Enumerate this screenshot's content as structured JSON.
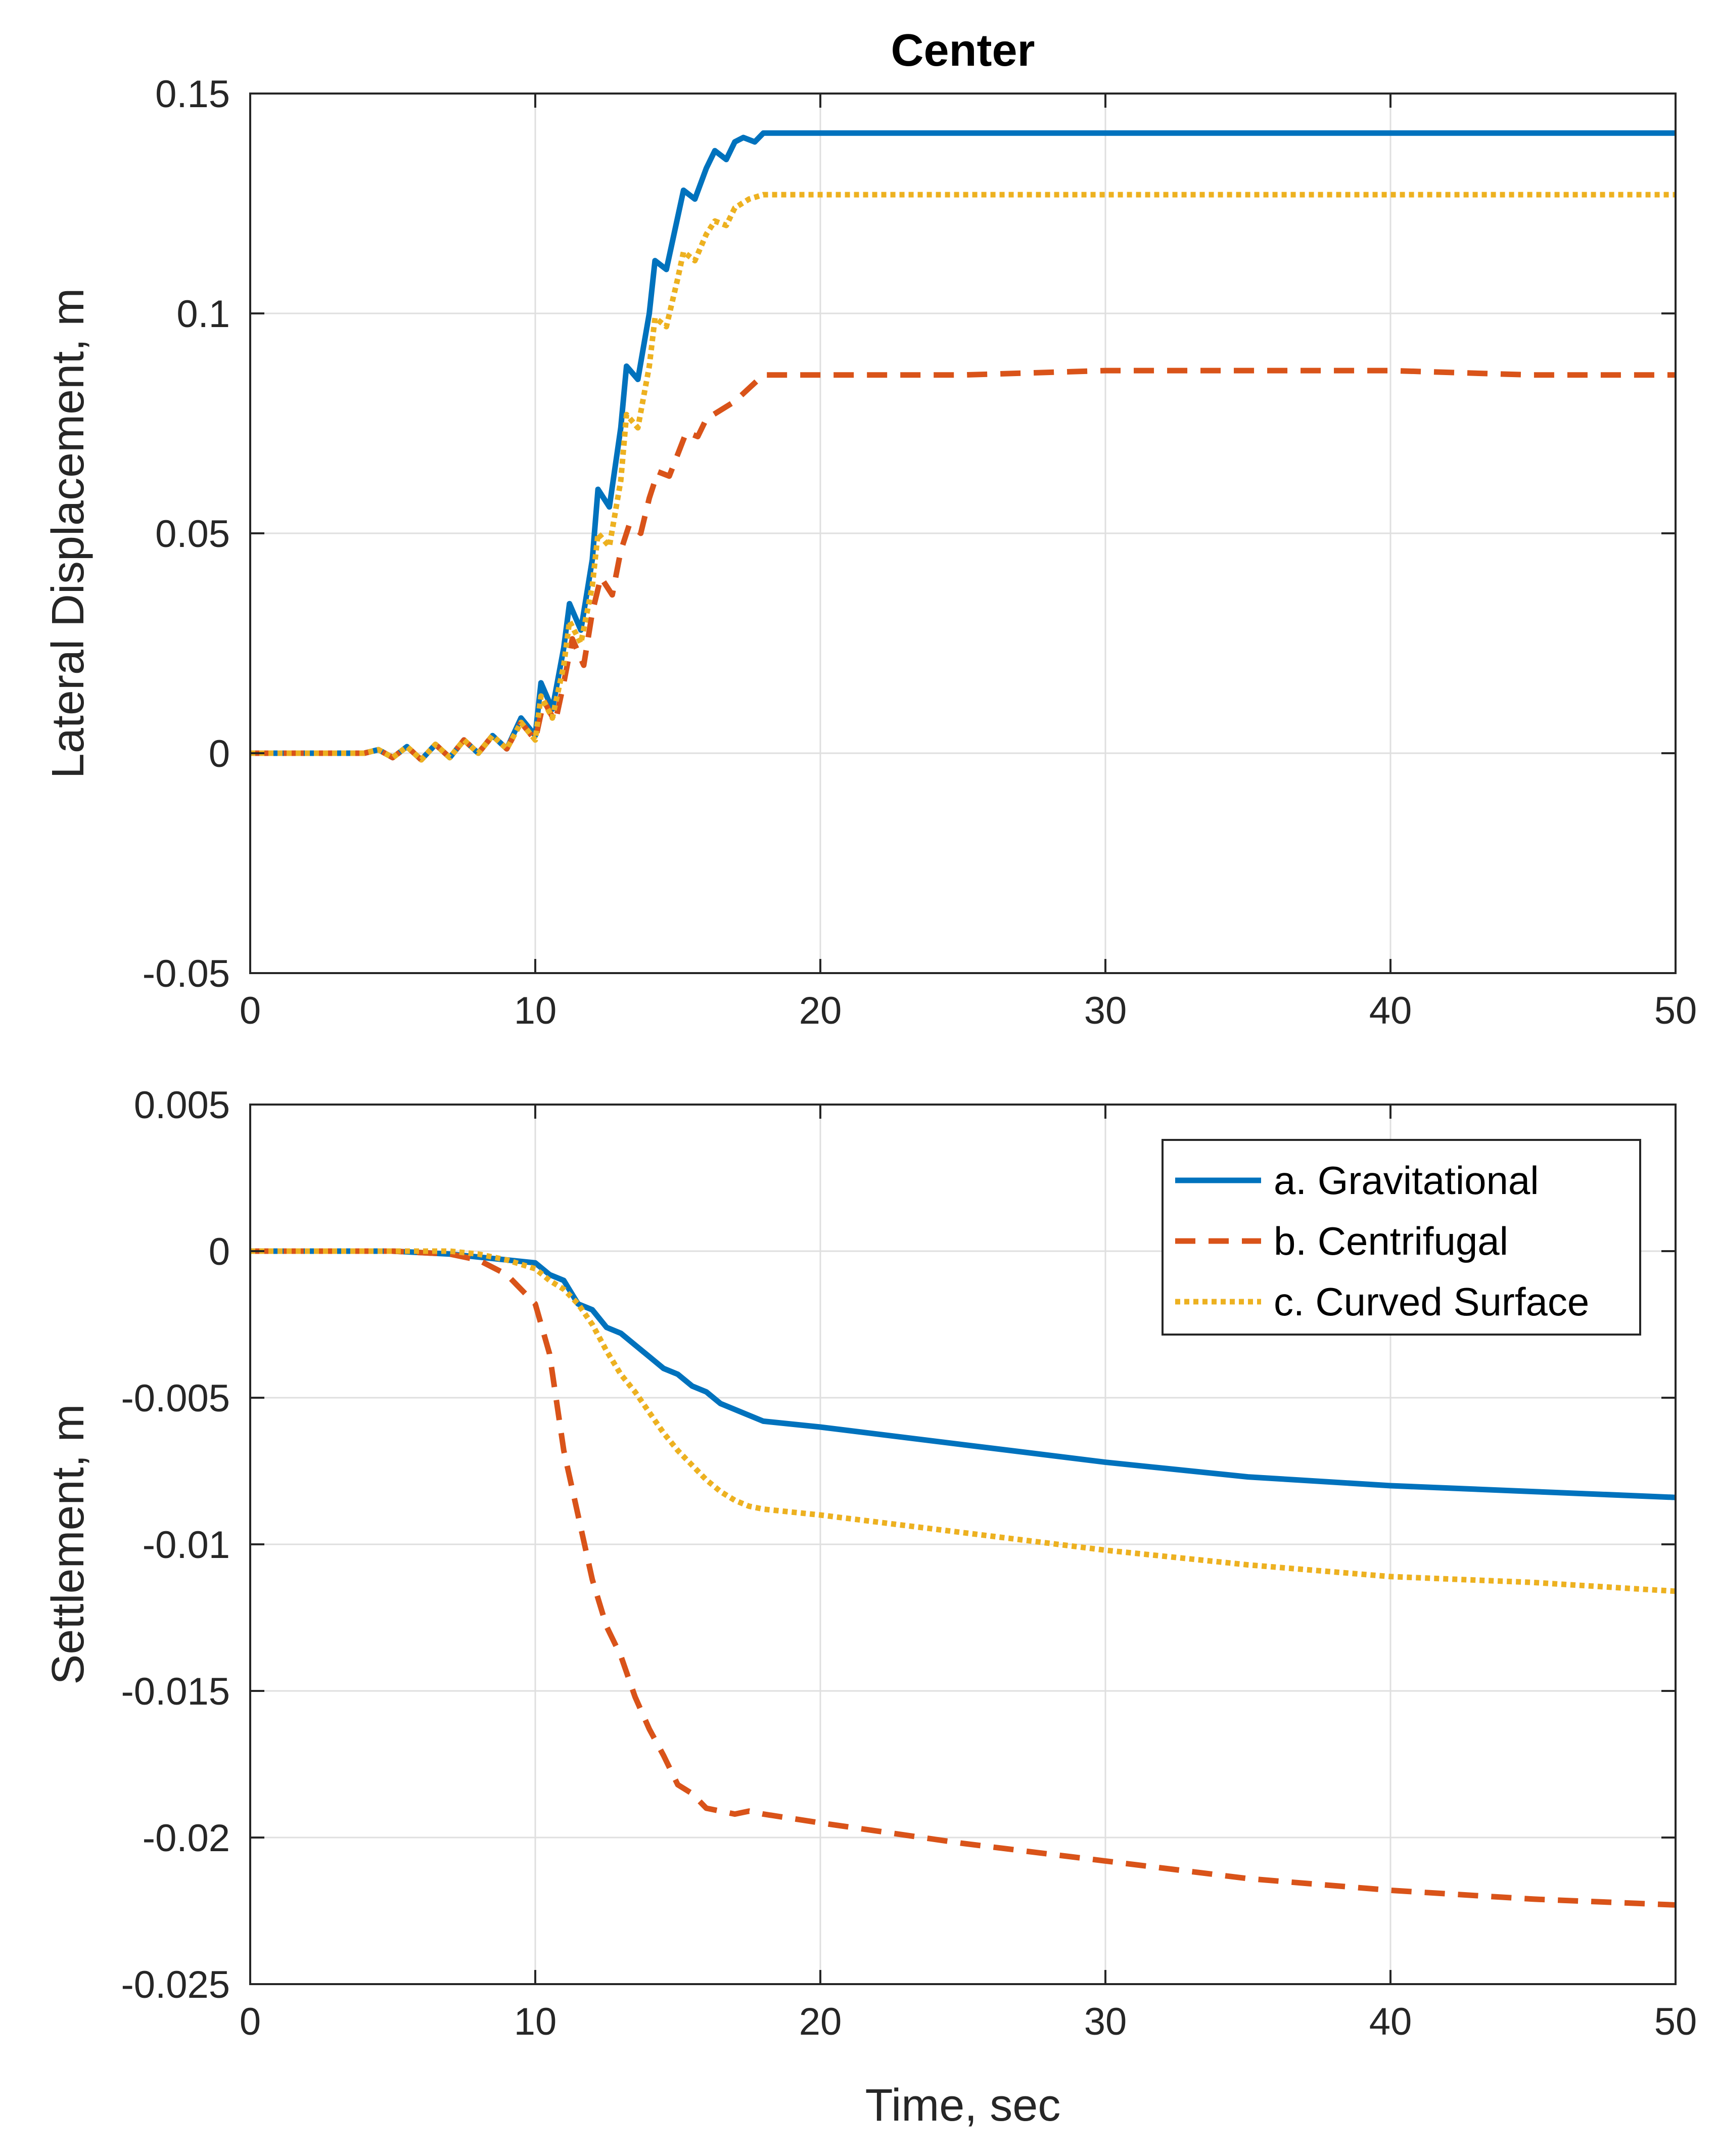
{
  "chart_data": [
    {
      "type": "line",
      "title": "Center",
      "xlabel": "",
      "ylabel": "Lateral Displacement, m",
      "xlim": [
        0,
        50
      ],
      "ylim": [
        -0.05,
        0.15
      ],
      "xticks": [
        0,
        10,
        20,
        30,
        40,
        50
      ],
      "xtick_labels": [
        "0",
        "10",
        "20",
        "30",
        "40",
        "50"
      ],
      "yticks": [
        -0.05,
        0,
        0.05,
        0.1,
        0.15
      ],
      "ytick_labels": [
        "-0.05",
        "0",
        "0.05",
        "0.1",
        "0.15"
      ],
      "grid": true,
      "series": [
        {
          "name": "a. Gravitational",
          "color": "#0072BD",
          "style": "solid",
          "x": [
            0,
            4,
            4.5,
            5,
            5.5,
            6,
            6.5,
            7,
            7.5,
            8,
            8.5,
            9,
            9.5,
            10,
            10.2,
            10.6,
            11,
            11.2,
            11.6,
            12,
            12.2,
            12.6,
            13,
            13.2,
            13.6,
            14,
            14.2,
            14.6,
            15,
            15.2,
            15.6,
            16,
            16.3,
            16.7,
            17,
            17.3,
            17.7,
            18,
            19,
            20,
            25,
            30,
            35,
            40,
            45,
            50
          ],
          "y": [
            0,
            0,
            0.0008,
            -0.001,
            0.0015,
            -0.0015,
            0.002,
            -0.001,
            0.003,
            0,
            0.004,
            0.001,
            0.008,
            0.004,
            0.016,
            0.01,
            0.024,
            0.034,
            0.028,
            0.044,
            0.06,
            0.056,
            0.074,
            0.088,
            0.085,
            0.1,
            0.112,
            0.11,
            0.122,
            0.128,
            0.126,
            0.133,
            0.137,
            0.135,
            0.139,
            0.14,
            0.139,
            0.141,
            0.141,
            0.141,
            0.141,
            0.141,
            0.141,
            0.141,
            0.141,
            0.141
          ]
        },
        {
          "name": "b. Centrifugal",
          "color": "#D95319",
          "style": "dashed",
          "x": [
            0,
            4,
            4.5,
            5,
            5.5,
            6,
            6.5,
            7,
            7.5,
            8,
            8.5,
            9,
            9.5,
            10,
            10.3,
            10.7,
            11,
            11.3,
            11.7,
            12,
            12.3,
            12.7,
            13,
            13.3,
            13.7,
            14,
            14.3,
            14.7,
            15,
            15.3,
            15.7,
            16,
            16.5,
            17,
            17.5,
            18,
            19,
            20,
            25,
            30,
            35,
            40,
            45,
            50
          ],
          "y": [
            0,
            0,
            0.0008,
            -0.001,
            0.0015,
            -0.0015,
            0.002,
            -0.001,
            0.003,
            0,
            0.004,
            0.001,
            0.007,
            0.003,
            0.012,
            0.007,
            0.016,
            0.026,
            0.02,
            0.032,
            0.04,
            0.036,
            0.046,
            0.052,
            0.05,
            0.058,
            0.064,
            0.063,
            0.068,
            0.073,
            0.072,
            0.076,
            0.078,
            0.08,
            0.083,
            0.086,
            0.086,
            0.086,
            0.086,
            0.087,
            0.087,
            0.087,
            0.086,
            0.086
          ]
        },
        {
          "name": "c. Curved Surface",
          "color": "#EDB120",
          "style": "dotted",
          "x": [
            0,
            4,
            4.5,
            5,
            5.5,
            6,
            6.5,
            7,
            7.5,
            8,
            8.5,
            9,
            9.5,
            10,
            10.2,
            10.6,
            11,
            11.2,
            11.6,
            12,
            12.2,
            12.6,
            13,
            13.2,
            13.6,
            14,
            14.2,
            14.6,
            15,
            15.2,
            15.6,
            16,
            16.3,
            16.7,
            17,
            17.5,
            18,
            19,
            20,
            25,
            30,
            35,
            40,
            45,
            50
          ],
          "y": [
            0,
            0,
            0.0008,
            -0.001,
            0.0015,
            -0.0015,
            0.002,
            -0.001,
            0.003,
            0,
            0.004,
            0.001,
            0.007,
            0.003,
            0.013,
            0.008,
            0.02,
            0.03,
            0.025,
            0.038,
            0.05,
            0.047,
            0.062,
            0.077,
            0.074,
            0.088,
            0.099,
            0.097,
            0.108,
            0.114,
            0.112,
            0.118,
            0.121,
            0.12,
            0.124,
            0.126,
            0.127,
            0.127,
            0.127,
            0.127,
            0.127,
            0.127,
            0.127,
            0.127,
            0.127
          ]
        }
      ]
    },
    {
      "type": "line",
      "title": "",
      "xlabel": "Time, sec",
      "ylabel": "Settlement, m",
      "xlim": [
        0,
        50
      ],
      "ylim": [
        -0.025,
        0.005
      ],
      "xticks": [
        0,
        10,
        20,
        30,
        40,
        50
      ],
      "xtick_labels": [
        "0",
        "10",
        "20",
        "30",
        "40",
        "50"
      ],
      "yticks": [
        -0.025,
        -0.02,
        -0.015,
        -0.01,
        -0.005,
        0,
        0.005
      ],
      "ytick_labels": [
        "-0.025",
        "-0.02",
        "-0.015",
        "-0.01",
        "-0.005",
        "0",
        "0.005"
      ],
      "grid": true,
      "legend": {
        "placement": "top-right",
        "entries": [
          "a. Gravitational",
          "b. Centrifugal",
          "c. Curved Surface"
        ]
      },
      "series": [
        {
          "name": "a. Gravitational",
          "color": "#0072BD",
          "style": "solid",
          "x": [
            0,
            5,
            7,
            8,
            9,
            10,
            10.5,
            11,
            11.5,
            12,
            12.5,
            13,
            13.5,
            14,
            14.5,
            15,
            15.5,
            16,
            16.5,
            17,
            17.5,
            18,
            20,
            25,
            30,
            35,
            40,
            45,
            50
          ],
          "y": [
            0,
            0,
            -0.0001,
            -0.0002,
            -0.0003,
            -0.0004,
            -0.0008,
            -0.001,
            -0.0018,
            -0.002,
            -0.0026,
            -0.0028,
            -0.0032,
            -0.0036,
            -0.004,
            -0.0042,
            -0.0046,
            -0.0048,
            -0.0052,
            -0.0054,
            -0.0056,
            -0.0058,
            -0.006,
            -0.0066,
            -0.0072,
            -0.0077,
            -0.008,
            -0.0082,
            -0.0084
          ]
        },
        {
          "name": "b. Centrifugal",
          "color": "#D95319",
          "style": "dashed",
          "x": [
            0,
            5,
            7,
            8,
            9,
            10,
            10.5,
            11,
            11.5,
            12,
            12.5,
            13,
            13.5,
            14,
            14.5,
            15,
            15.5,
            16,
            16.5,
            17,
            17.5,
            18,
            20,
            25,
            30,
            35,
            40,
            45,
            50
          ],
          "y": [
            0,
            0,
            -0.0001,
            -0.0003,
            -0.0008,
            -0.0018,
            -0.0035,
            -0.0068,
            -0.009,
            -0.0112,
            -0.0128,
            -0.0138,
            -0.0152,
            -0.0163,
            -0.0172,
            -0.0182,
            -0.0185,
            -0.019,
            -0.0191,
            -0.0192,
            -0.0191,
            -0.0192,
            -0.0195,
            -0.0202,
            -0.0208,
            -0.0214,
            -0.0218,
            -0.0221,
            -0.0223
          ]
        },
        {
          "name": "c. Curved Surface",
          "color": "#EDB120",
          "style": "dotted",
          "x": [
            0,
            5,
            7,
            8,
            9,
            10,
            10.5,
            11,
            11.5,
            12,
            12.5,
            13,
            13.5,
            14,
            14.5,
            15,
            15.5,
            16,
            16.5,
            17,
            17.5,
            18,
            20,
            25,
            30,
            35,
            40,
            45,
            50
          ],
          "y": [
            0,
            0,
            0,
            -0.0001,
            -0.0003,
            -0.0006,
            -0.001,
            -0.0013,
            -0.0018,
            -0.0025,
            -0.0034,
            -0.0042,
            -0.0048,
            -0.0055,
            -0.0062,
            -0.0068,
            -0.0073,
            -0.0078,
            -0.0082,
            -0.0085,
            -0.0087,
            -0.0088,
            -0.009,
            -0.0096,
            -0.0102,
            -0.0107,
            -0.0111,
            -0.0113,
            -0.0116
          ]
        }
      ]
    }
  ]
}
